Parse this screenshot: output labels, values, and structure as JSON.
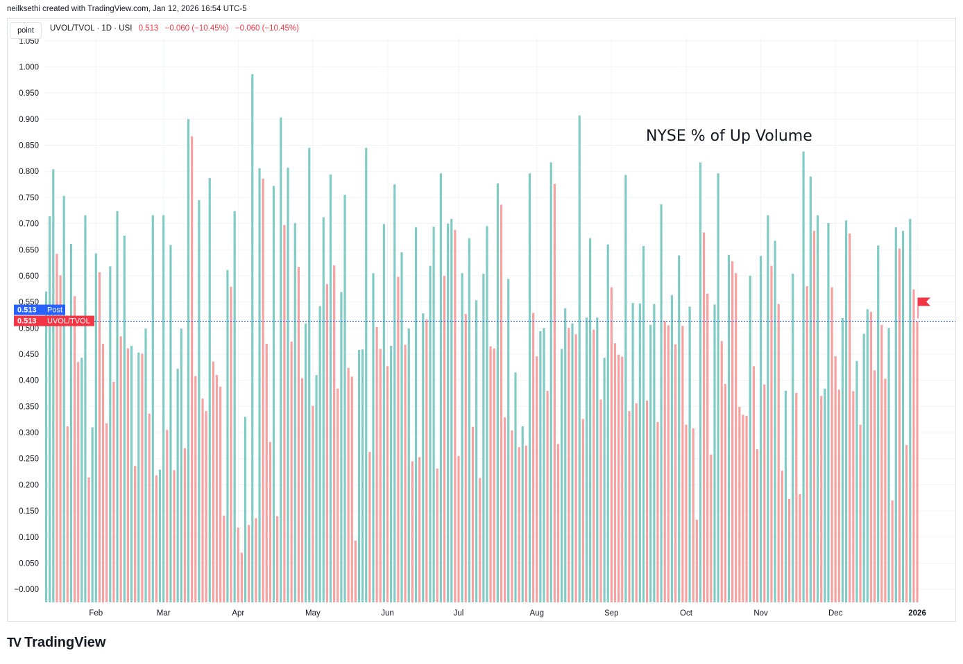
{
  "header": {
    "credit": "neilksethi created with TradingView.com, Jan 12, 2026 16:54 UTC-5",
    "point_label": "point",
    "symbol_line": "UVOL/TVOL · 1D · USI",
    "value": "0.513",
    "change1": "−0.060 (−10.45%)",
    "change2": "−0.060 (−10.45%)"
  },
  "price_labels": [
    {
      "value": "0.513",
      "name": "Post",
      "color": "#2962ff"
    },
    {
      "value": "0.513",
      "name": "UVOL/TVOL",
      "color": "#f23645"
    }
  ],
  "brand": {
    "logo": "TV",
    "name": "TradingView"
  },
  "colors": {
    "up": "#80cbc4",
    "down": "#f7a1a1",
    "grid": "#f0f3fa",
    "last_line": "#2962ff",
    "flag": "#f23645"
  },
  "chart_data": {
    "type": "bar",
    "title": "NYSE % of Up Volume",
    "ylim": [
      -0.025,
      1.055
    ],
    "yticks": [
      "1.050",
      "1.000",
      "0.950",
      "0.900",
      "0.850",
      "0.800",
      "0.750",
      "0.700",
      "0.650",
      "0.600",
      "0.550",
      "0.500",
      "0.450",
      "0.400",
      "0.350",
      "0.300",
      "0.250",
      "0.200",
      "0.150",
      "0.100",
      "0.050",
      "−0.000"
    ],
    "ytick_values": [
      1.05,
      1.0,
      0.95,
      0.9,
      0.85,
      0.8,
      0.75,
      0.7,
      0.65,
      0.6,
      0.55,
      0.5,
      0.45,
      0.4,
      0.35,
      0.3,
      0.25,
      0.2,
      0.15,
      0.1,
      0.05,
      0.0
    ],
    "xtick_labels": [
      "Feb",
      "Mar",
      "Apr",
      "May",
      "Jun",
      "Jul",
      "Aug",
      "Sep",
      "Oct",
      "Nov",
      "Dec",
      "2026"
    ],
    "xtick_index": [
      14,
      33,
      54,
      75,
      96,
      116,
      138,
      159,
      180,
      201,
      222,
      245
    ],
    "last_value": 0.513,
    "values": [
      0.57,
      0.714,
      0.804,
      0.642,
      0.601,
      0.753,
      0.312,
      0.661,
      0.561,
      0.435,
      0.443,
      0.716,
      0.214,
      0.31,
      0.643,
      0.607,
      0.47,
      0.318,
      0.618,
      0.397,
      0.724,
      0.484,
      0.677,
      0.461,
      0.466,
      0.236,
      0.453,
      0.451,
      0.499,
      0.336,
      0.716,
      0.218,
      0.229,
      0.716,
      0.305,
      0.659,
      0.228,
      0.422,
      0.499,
      0.27,
      0.9,
      0.867,
      0.408,
      0.745,
      0.365,
      0.341,
      0.787,
      0.436,
      0.41,
      0.388,
      0.141,
      0.611,
      0.579,
      0.724,
      0.118,
      0.07,
      0.33,
      0.123,
      0.986,
      0.136,
      0.806,
      0.786,
      0.47,
      0.282,
      0.772,
      0.14,
      0.903,
      0.697,
      0.807,
      0.474,
      0.701,
      0.617,
      0.404,
      0.509,
      0.845,
      0.351,
      0.41,
      0.542,
      0.712,
      0.584,
      0.794,
      0.62,
      0.384,
      0.569,
      0.755,
      0.424,
      0.407,
      0.093,
      0.458,
      0.459,
      0.845,
      0.263,
      0.605,
      0.502,
      0.46,
      0.699,
      0.427,
      0.466,
      0.775,
      0.598,
      0.645,
      0.468,
      0.499,
      0.245,
      0.693,
      0.253,
      0.528,
      0.517,
      0.619,
      0.694,
      0.231,
      0.796,
      0.6,
      0.7,
      0.709,
      0.688,
      0.255,
      0.605,
      0.527,
      0.672,
      0.311,
      0.553,
      0.213,
      0.604,
      0.695,
      0.465,
      0.461,
      0.777,
      0.736,
      0.329,
      0.594,
      0.304,
      0.415,
      0.272,
      0.312,
      0.275,
      0.796,
      0.529,
      0.446,
      0.494,
      0.5,
      0.38,
      0.817,
      0.776,
      0.278,
      0.46,
      0.538,
      0.5,
      0.509,
      0.488,
      0.907,
      0.326,
      0.52,
      0.672,
      0.497,
      0.52,
      0.363,
      0.443,
      0.66,
      0.578,
      0.471,
      0.449,
      0.445,
      0.793,
      0.341,
      0.548,
      0.356,
      0.547,
      0.657,
      0.361,
      0.506,
      0.546,
      0.32,
      0.737,
      0.513,
      0.505,
      0.563,
      0.469,
      0.639,
      0.504,
      0.315,
      0.541,
      0.308,
      0.133,
      0.817,
      0.683,
      0.566,
      0.258,
      0.545,
      0.796,
      0.475,
      0.393,
      0.64,
      0.628,
      0.605,
      0.349,
      0.334,
      0.332,
      0.6,
      0.427,
      0.268,
      0.638,
      0.392,
      0.716,
      0.619,
      0.667,
      0.546,
      0.227,
      0.38,
      0.173,
      0.604,
      0.376,
      0.182,
      0.838,
      0.58,
      0.79,
      0.686,
      0.716,
      0.37,
      0.384,
      0.701,
      0.578,
      0.446,
      0.382,
      0.519,
      0.706,
      0.681,
      0.379,
      0.437,
      0.315,
      0.489,
      0.536,
      0.531,
      0.419,
      0.658,
      0.506,
      0.403,
      0.5,
      0.17,
      0.693,
      0.652,
      0.686,
      0.276,
      0.709,
      0.574,
      0.513
    ]
  }
}
